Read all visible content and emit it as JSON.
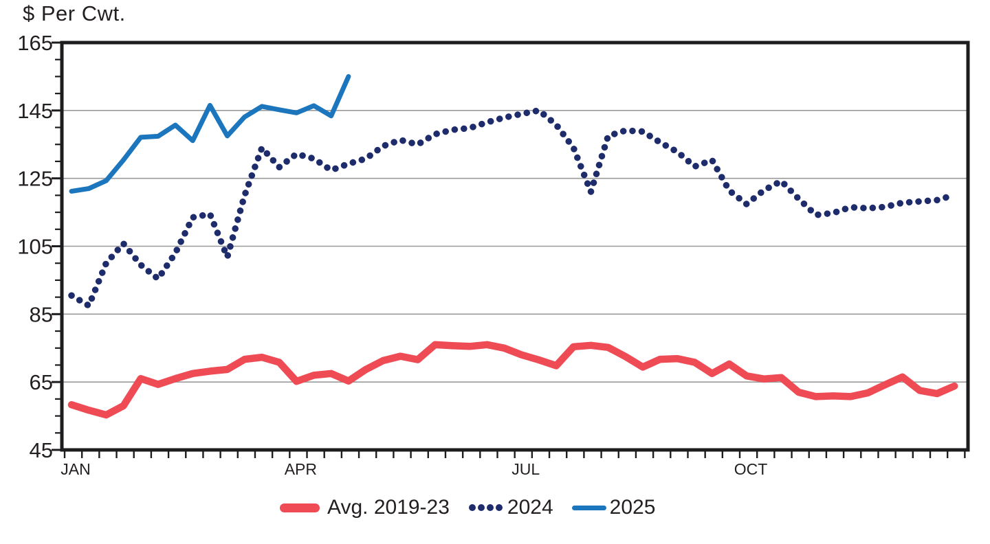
{
  "chart_data": {
    "type": "line",
    "title": "$ Per Cwt.",
    "ylabel": "$ Per Cwt.",
    "xlabel": "",
    "grid": "horizontal major gridlines on",
    "legend_position": "bottom center",
    "y_axis": {
      "min": 45,
      "max": 165,
      "major_step": 20,
      "minor_step": 5,
      "tick_labels": [
        "165",
        "145",
        "125",
        "105",
        "85",
        "65",
        "45"
      ]
    },
    "x_axis": {
      "unit": "weekly",
      "weeks": 52,
      "tick_labels": [
        "JAN",
        "APR",
        "JUL",
        "OCT"
      ],
      "tick_label_weeks": [
        0,
        13,
        26,
        39
      ]
    },
    "colors": {
      "red": "#ef4b55",
      "navy": "#1e2c6b",
      "blue": "#1b76bd",
      "axis": "#1d1d1f",
      "grid": "#9a9a9a",
      "text": "#231f20"
    },
    "series": [
      {
        "name": "Avg. 2019-23",
        "style": "solid-thick",
        "color": "#ef4b55",
        "values": [
          58.3,
          56.7,
          55.3,
          58,
          66,
          64.3,
          66,
          67.5,
          68.2,
          68.7,
          71.7,
          72.3,
          70.8,
          65.2,
          67,
          67.5,
          65.3,
          68.7,
          71.3,
          72.6,
          71.6,
          76,
          75.7,
          75.5,
          76,
          75,
          73,
          71.5,
          69.8,
          75.4,
          75.8,
          75.2,
          72.5,
          69.4,
          71.7,
          71.9,
          70.8,
          67.5,
          70.3,
          66.8,
          65.9,
          66.3,
          62,
          60.7,
          60.9,
          60.7,
          61.8,
          64.2,
          66.5,
          62.5,
          61.6,
          63.8
        ]
      },
      {
        "name": "2024",
        "style": "dotted",
        "color": "#1e2c6b",
        "values": [
          90.5,
          87.5,
          100,
          105.8,
          99.5,
          95.4,
          103,
          113.5,
          114.5,
          101.8,
          120,
          134,
          128.3,
          132.2,
          130.8,
          127.4,
          129.3,
          130.8,
          134.5,
          136.3,
          135,
          138,
          139.3,
          139.8,
          141.5,
          142.9,
          144,
          145,
          140.8,
          134,
          121,
          137.5,
          139.1,
          138.8,
          135.6,
          132.8,
          128.5,
          130.4,
          121.4,
          117.4,
          121.5,
          124.2,
          119,
          114.2,
          114.8,
          116.5,
          116.2,
          116.6,
          117.8,
          118.2,
          118.6,
          120.1
        ]
      },
      {
        "name": "2025",
        "style": "solid",
        "color": "#1b76bd",
        "values": [
          121.2,
          122,
          124.3,
          130.4,
          137.1,
          137.4,
          140.7,
          136.1,
          146.5,
          137.5,
          143.1,
          146.2,
          145.2,
          144.3,
          146.4,
          143.4,
          155
        ]
      }
    ]
  }
}
